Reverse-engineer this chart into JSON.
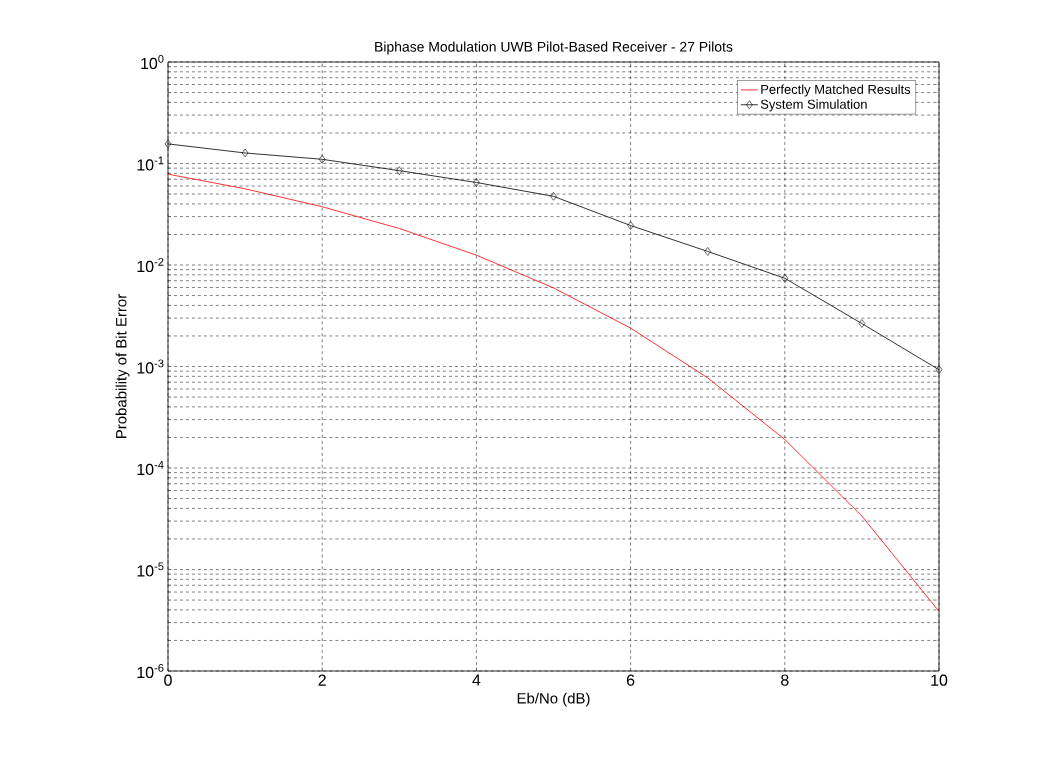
{
  "chart_data": {
    "type": "line",
    "title": "Biphase Modulation UWB Pilot-Based Receiver - 27 Pilots",
    "xlabel": "Eb/No (dB)",
    "ylabel": "Probability of Bit Error",
    "log": "y",
    "grid": true,
    "legend": "top right",
    "xlim": [
      0,
      10
    ],
    "xticks": [
      0,
      2,
      4,
      6,
      8,
      10
    ],
    "ylim": [
      1e-06,
      1
    ],
    "yticks": [
      {
        "value": 1e-06,
        "label": "10$^{-6}$"
      },
      {
        "value": 1e-05,
        "label": "10$^{-5}$"
      },
      {
        "value": 0.0001,
        "label": "10$^{-4}$"
      },
      {
        "value": 0.001,
        "label": "10$^{-3}$"
      },
      {
        "value": 0.01,
        "label": "10$^{-2}$"
      },
      {
        "value": 0.1,
        "label": "10$^{-1}$"
      },
      {
        "value": 1,
        "label": "10$^{0}$"
      }
    ],
    "series": [
      {
        "name": "Perfectly Matched Results",
        "color": "#ff0000",
        "marker": "none",
        "x": [
          0,
          1,
          2,
          3,
          4,
          5,
          6,
          7,
          8,
          9,
          10
        ],
        "values": [
          0.0786,
          0.0563,
          0.0375,
          0.0229,
          0.0125,
          0.00595,
          0.00239,
          0.000773,
          0.000191,
          3.36e-05,
          3.87e-06
        ]
      },
      {
        "name": "System Simulation",
        "color": "#000000",
        "marker": "diamond",
        "x": [
          0,
          1,
          2,
          3,
          4,
          5,
          6,
          7,
          8,
          9,
          10
        ],
        "values": [
          0.156,
          0.127,
          0.11,
          0.085,
          0.065,
          0.0475,
          0.0245,
          0.0136,
          0.0074,
          0.00265,
          0.00093
        ]
      }
    ]
  }
}
